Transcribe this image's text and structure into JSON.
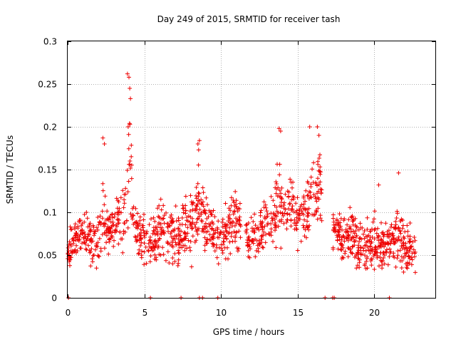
{
  "chart_data": {
    "type": "scatter",
    "title": "Day 249 of 2015, SRMTID for receiver tash",
    "xlabel": "GPS time / hours",
    "ylabel": "SRMTID / TECUs",
    "xlim": [
      0,
      24
    ],
    "ylim": [
      0,
      0.3
    ],
    "xticks": [
      0,
      5,
      10,
      15,
      20
    ],
    "xtick_labels": [
      "0",
      "5",
      "10",
      "15",
      "20"
    ],
    "yticks": [
      0,
      0.05,
      0.1,
      0.15,
      0.2,
      0.25,
      0.3
    ],
    "ytick_labels": [
      "0",
      "0.05",
      "0.1",
      "0.15",
      "0.2",
      "0.25",
      "0.3"
    ],
    "grid": true,
    "marker": "+",
    "series_color": "#ee0000",
    "data_range_hours": [
      0,
      22.7
    ],
    "gaps_hours": [
      [
        11.3,
        11.6
      ],
      [
        16.6,
        17.3
      ]
    ],
    "zero_value_times": [
      0.05,
      5.4,
      7.4,
      8.6,
      8.8,
      9.8,
      16.8,
      17.3,
      17.4,
      21.0
    ],
    "envelope": {
      "x": [
        0,
        0.5,
        1,
        1.5,
        2,
        2.3,
        2.6,
        3,
        3.3,
        3.7,
        3.9,
        4.1,
        4.3,
        4.6,
        5,
        5.5,
        6,
        6.5,
        7,
        7.5,
        8,
        8.5,
        8.7,
        9,
        9.5,
        10,
        10.5,
        11,
        11.5,
        12,
        12.5,
        13,
        13.5,
        13.8,
        14,
        14.3,
        14.5,
        15,
        15.5,
        15.8,
        16,
        16.3,
        16.5,
        17.2,
        17.5,
        18,
        18.5,
        19,
        19.5,
        20,
        20.5,
        21,
        21.5,
        21.8,
        22,
        22.7
      ],
      "low": [
        0.02,
        0.04,
        0.04,
        0.03,
        0.02,
        0.03,
        0.04,
        0.04,
        0.04,
        0.04,
        0.05,
        0.06,
        0.05,
        0.04,
        0.03,
        0.03,
        0.03,
        0.03,
        0.02,
        0.03,
        0.03,
        0.04,
        0.05,
        0.04,
        0.03,
        0.03,
        0.04,
        0.04,
        0.04,
        0.03,
        0.03,
        0.04,
        0.04,
        0.05,
        0.05,
        0.06,
        0.06,
        0.05,
        0.04,
        0.05,
        0.06,
        0.07,
        0.07,
        0.04,
        0.04,
        0.03,
        0.03,
        0.02,
        0.02,
        0.02,
        0.02,
        0.02,
        0.01,
        0.01,
        0.02,
        0.02
      ],
      "high": [
        0.09,
        0.1,
        0.11,
        0.11,
        0.12,
        0.17,
        0.12,
        0.12,
        0.14,
        0.14,
        0.22,
        0.25,
        0.13,
        0.11,
        0.11,
        0.1,
        0.13,
        0.12,
        0.11,
        0.13,
        0.14,
        0.17,
        0.17,
        0.13,
        0.12,
        0.11,
        0.13,
        0.15,
        0.11,
        0.11,
        0.12,
        0.14,
        0.15,
        0.19,
        0.17,
        0.16,
        0.16,
        0.13,
        0.14,
        0.17,
        0.19,
        0.18,
        0.18,
        0.11,
        0.12,
        0.11,
        0.13,
        0.1,
        0.1,
        0.11,
        0.1,
        0.12,
        0.13,
        0.14,
        0.1,
        0.09
      ]
    },
    "spikes": [
      {
        "x": 2.3,
        "y": 0.187
      },
      {
        "x": 2.4,
        "y": 0.18
      },
      {
        "x": 3.9,
        "y": 0.262
      },
      {
        "x": 4.0,
        "y": 0.258
      },
      {
        "x": 4.05,
        "y": 0.245
      },
      {
        "x": 4.1,
        "y": 0.233
      },
      {
        "x": 3.95,
        "y": 0.2
      },
      {
        "x": 8.5,
        "y": 0.18
      },
      {
        "x": 8.6,
        "y": 0.184
      },
      {
        "x": 8.55,
        "y": 0.173
      },
      {
        "x": 13.8,
        "y": 0.198
      },
      {
        "x": 13.9,
        "y": 0.195
      },
      {
        "x": 15.8,
        "y": 0.2
      },
      {
        "x": 16.3,
        "y": 0.2
      },
      {
        "x": 16.4,
        "y": 0.19
      },
      {
        "x": 20.3,
        "y": 0.132
      },
      {
        "x": 21.6,
        "y": 0.146
      }
    ]
  }
}
